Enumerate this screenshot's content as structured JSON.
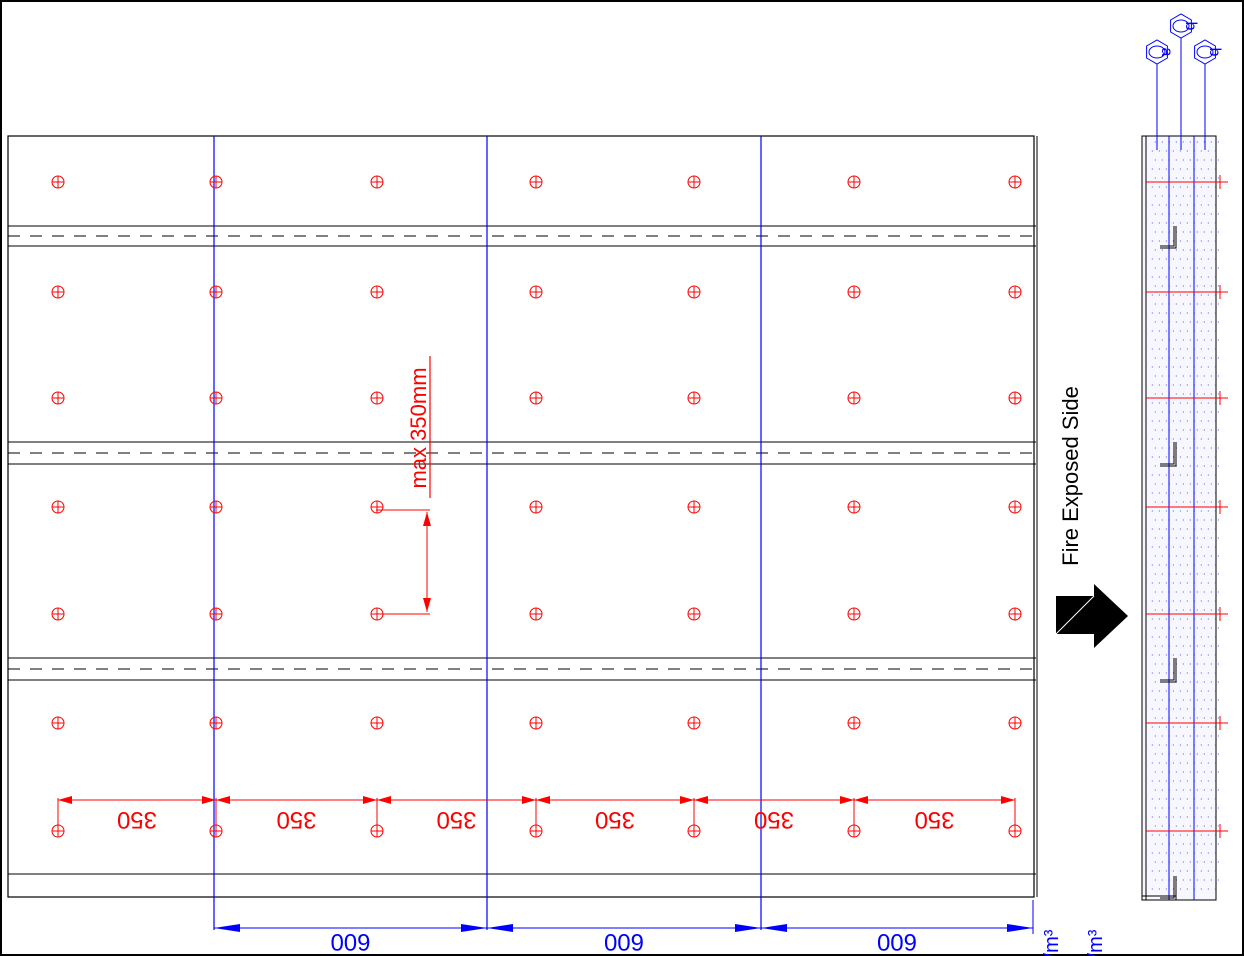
{
  "labels": {
    "max_spacing": "max 350mm",
    "fire_side": "Fire Exposed Side",
    "layer_a": "a",
    "layer_b1": "b",
    "layer_b2": "b",
    "frag1": "/m³",
    "frag2": "/m³"
  },
  "dims": {
    "screw": [
      "350",
      "350",
      "350",
      "350",
      "350",
      "350"
    ],
    "stud": [
      "600",
      "600",
      "600"
    ]
  },
  "colors": {
    "outline": "#000000",
    "stud": "#0000ff",
    "screw": "#ff0000",
    "background": "#ffffff"
  }
}
